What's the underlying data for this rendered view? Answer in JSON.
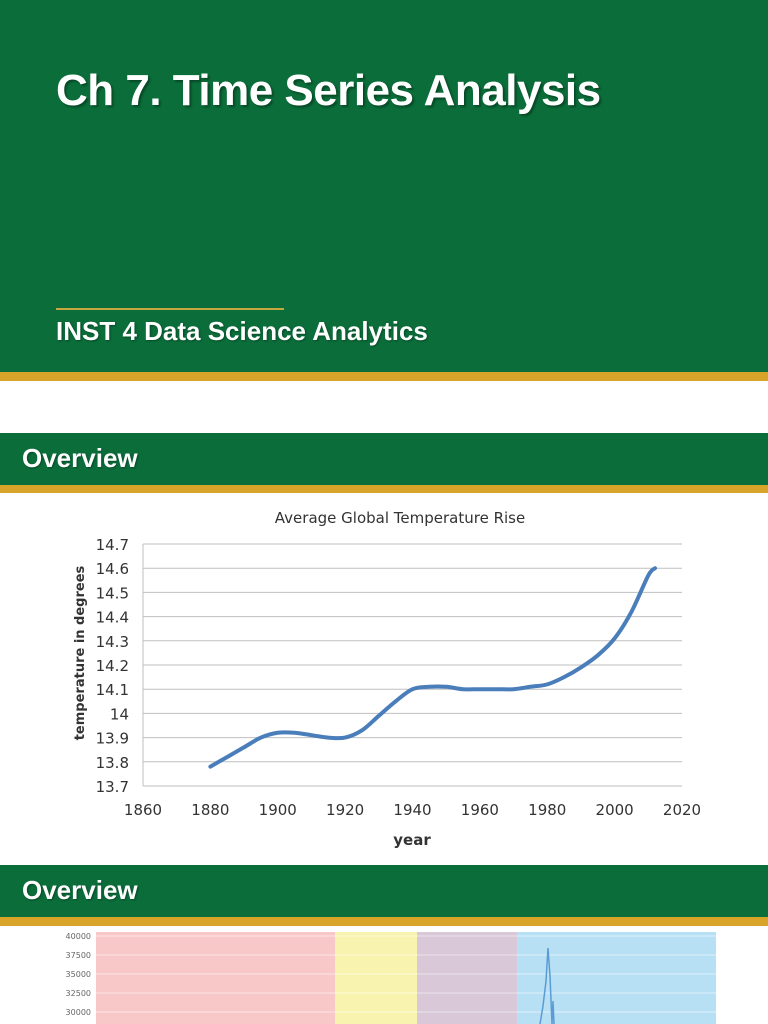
{
  "slide1": {
    "title": "Ch 7. Time Series Analysis",
    "subtitle": "INST 4 Data Science Analytics"
  },
  "slide2": {
    "heading": "Overview"
  },
  "slide3": {
    "heading": "Overview"
  },
  "chart_data": [
    {
      "type": "line",
      "title": "Average Global Temperature Rise",
      "xlabel": "year",
      "ylabel": "temperature in degrees",
      "xlim": [
        1860,
        2020
      ],
      "ylim": [
        13.7,
        14.7
      ],
      "x_ticks": [
        "1860",
        "1880",
        "1900",
        "1920",
        "1940",
        "1960",
        "1980",
        "2000",
        "2020"
      ],
      "y_ticks": [
        "14.7",
        "14.6",
        "14.5",
        "14.4",
        "14.3",
        "14.2",
        "14.1",
        "14",
        "13.9",
        "13.8",
        "13.7"
      ],
      "grid": true,
      "line_color": "#4a7ebb",
      "series": [
        {
          "x": [
            1880,
            1885,
            1890,
            1895,
            1900,
            1905,
            1910,
            1915,
            1920,
            1925,
            1930,
            1935,
            1940,
            1945,
            1950,
            1955,
            1960,
            1965,
            1970,
            1975,
            1980,
            1985,
            1990,
            1995,
            2000,
            2005,
            2010,
            2012
          ],
          "y": [
            13.78,
            13.82,
            13.86,
            13.9,
            13.92,
            13.92,
            13.91,
            13.9,
            13.9,
            13.93,
            13.99,
            14.05,
            14.1,
            14.11,
            14.11,
            14.1,
            14.1,
            14.1,
            14.1,
            14.11,
            14.12,
            14.15,
            14.19,
            14.24,
            14.31,
            14.42,
            14.57,
            14.6
          ]
        }
      ]
    },
    {
      "type": "area",
      "y_ticks": [
        "40000",
        "37500",
        "35000",
        "32500",
        "30000"
      ],
      "ylim": [
        30000,
        40000
      ],
      "region_colors": [
        "#f8c8c8",
        "#f8f4b0",
        "#d8c8d8",
        "#b8e0f4"
      ],
      "line_color": "#5b9bd5"
    }
  ]
}
